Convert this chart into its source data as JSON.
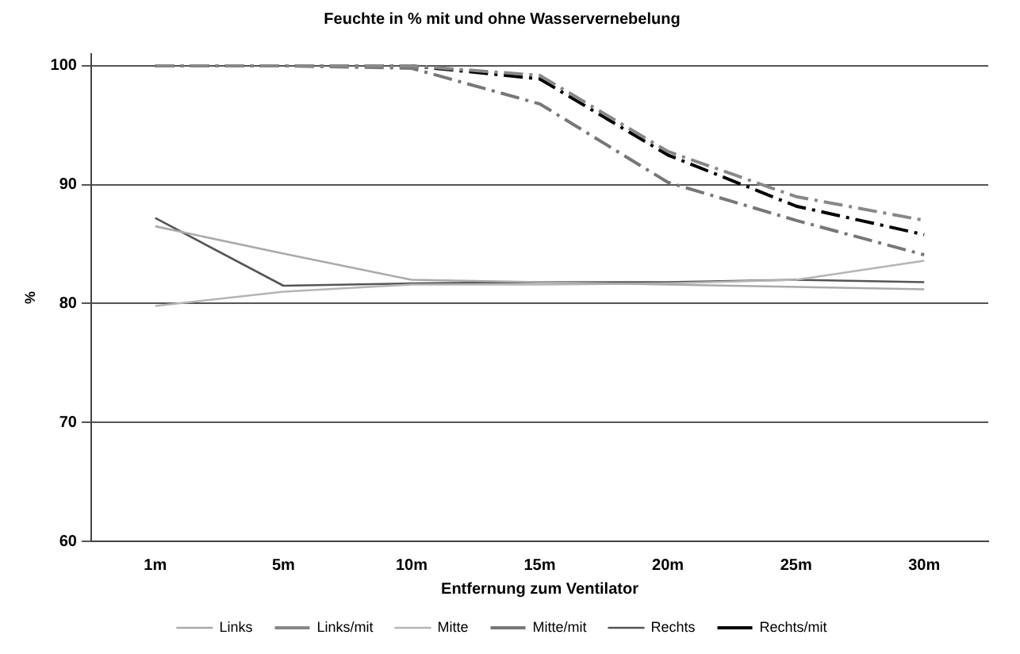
{
  "chart_data": {
    "type": "line",
    "title": "Feuchte in % mit und ohne Wasservernebelung",
    "xlabel": "Entfernung zum Ventilator",
    "ylabel": "%",
    "categories": [
      "1m",
      "5m",
      "10m",
      "15m",
      "20m",
      "25m",
      "30m"
    ],
    "ylim": [
      60,
      101
    ],
    "yticks": [
      60,
      70,
      80,
      90,
      100
    ],
    "grid": "y",
    "legend": "bottom",
    "marker": "none",
    "series": [
      {
        "name": "Links",
        "color": "#aaaaaa",
        "line_style": "solid",
        "values": [
          86.5,
          84.2,
          82,
          81.8,
          81.6,
          81.4,
          81.2
        ]
      },
      {
        "name": "Links/mit",
        "color": "#888888",
        "line_style": "dashed",
        "values": [
          100,
          100,
          100,
          99.2,
          92.8,
          89,
          87
        ]
      },
      {
        "name": "Mitte",
        "color": "#b5b5b5",
        "line_style": "solid",
        "values": [
          79.8,
          81,
          81.6,
          81.6,
          81.7,
          82,
          83.6
        ]
      },
      {
        "name": "Mitte/mit",
        "color": "#777777",
        "line_style": "dashed",
        "values": [
          100,
          100,
          99.8,
          96.8,
          90.2,
          87,
          84.1
        ]
      },
      {
        "name": "Rechts",
        "color": "#555555",
        "line_style": "solid",
        "values": [
          87.2,
          81.5,
          81.7,
          81.8,
          81.8,
          82,
          81.8
        ]
      },
      {
        "name": "Rechts/mit",
        "color": "#000000",
        "line_style": "dashed",
        "values": [
          100,
          100,
          100,
          98.9,
          92.5,
          88.2,
          85.8
        ]
      }
    ]
  }
}
